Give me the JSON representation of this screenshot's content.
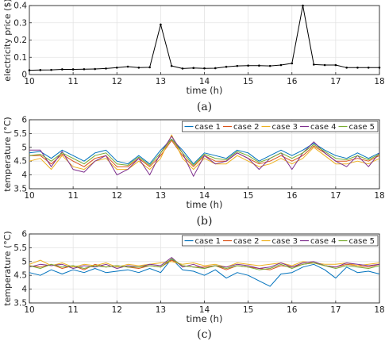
{
  "chart_data": [
    {
      "type": "line",
      "panel": "(a)",
      "xlabel": "time (h)",
      "ylabel": "electricity price ($)",
      "xlim": [
        10,
        18
      ],
      "ylim": [
        0,
        0.4
      ],
      "xticks": [
        10,
        11,
        12,
        13,
        14,
        15,
        16,
        17,
        18
      ],
      "yticks": [
        0,
        0.1,
        0.2,
        0.3,
        0.4
      ],
      "ytick_labels": [
        "0",
        "0.1",
        "0.2",
        "0.3",
        "0.4"
      ],
      "grid": true,
      "series": [
        {
          "color": "#000000",
          "markers": true,
          "x": [
            10,
            10.25,
            10.5,
            10.75,
            11,
            11.25,
            11.5,
            11.75,
            12,
            12.25,
            12.5,
            12.75,
            13,
            13.25,
            13.5,
            13.75,
            14,
            14.25,
            14.5,
            14.75,
            15,
            15.25,
            15.5,
            15.75,
            16,
            16.25,
            16.5,
            16.75,
            17,
            17.25,
            17.5,
            17.75,
            18
          ],
          "y": [
            0.025,
            0.026,
            0.027,
            0.03,
            0.03,
            0.031,
            0.032,
            0.035,
            0.04,
            0.046,
            0.04,
            0.042,
            0.29,
            0.05,
            0.035,
            0.038,
            0.036,
            0.037,
            0.045,
            0.05,
            0.052,
            0.052,
            0.05,
            0.055,
            0.065,
            0.4,
            0.058,
            0.055,
            0.055,
            0.04,
            0.04,
            0.04,
            0.04
          ]
        }
      ]
    },
    {
      "type": "line",
      "panel": "(b)",
      "xlabel": "time (h)",
      "ylabel": "temperature (°C)",
      "xlim": [
        10,
        18
      ],
      "ylim": [
        3.5,
        6
      ],
      "xticks": [
        10,
        11,
        12,
        13,
        14,
        15,
        16,
        17,
        18
      ],
      "yticks": [
        3.5,
        4,
        4.5,
        5,
        5.5,
        6
      ],
      "ytick_labels": [
        "3.5",
        "4",
        "4.5",
        "5",
        "5.5",
        "6"
      ],
      "grid": true,
      "legend": "top-right",
      "x": [
        10,
        10.25,
        10.5,
        10.75,
        11,
        11.25,
        11.5,
        11.75,
        12,
        12.25,
        12.5,
        12.75,
        13,
        13.25,
        13.5,
        13.75,
        14,
        14.25,
        14.5,
        14.75,
        15,
        15.25,
        15.5,
        15.75,
        16,
        16.25,
        16.5,
        16.75,
        17,
        17.25,
        17.5,
        17.75,
        18
      ],
      "series": [
        {
          "name": "case 1",
          "color": "#0072BD",
          "values": [
            4.8,
            4.85,
            4.6,
            4.9,
            4.7,
            4.5,
            4.8,
            4.9,
            4.5,
            4.4,
            4.7,
            4.4,
            4.9,
            5.3,
            4.9,
            4.4,
            4.8,
            4.7,
            4.6,
            4.9,
            4.8,
            4.5,
            4.7,
            4.9,
            4.7,
            4.9,
            5.15,
            4.9,
            4.7,
            4.6,
            4.8,
            4.6,
            4.8
          ]
        },
        {
          "name": "case 2",
          "color": "#D95319",
          "values": [
            4.7,
            4.7,
            4.4,
            4.75,
            4.5,
            4.3,
            4.6,
            4.7,
            4.3,
            4.3,
            4.6,
            4.3,
            4.7,
            5.25,
            4.7,
            4.3,
            4.7,
            4.5,
            4.5,
            4.8,
            4.6,
            4.4,
            4.5,
            4.7,
            4.5,
            4.7,
            5.05,
            4.8,
            4.5,
            4.5,
            4.6,
            4.5,
            4.7
          ]
        },
        {
          "name": "case 3",
          "color": "#EDB120",
          "values": [
            4.5,
            4.6,
            4.2,
            4.7,
            4.3,
            4.2,
            4.5,
            4.6,
            4.2,
            4.2,
            4.5,
            4.2,
            4.6,
            5.45,
            4.6,
            4.2,
            4.6,
            4.4,
            4.4,
            4.7,
            4.5,
            4.3,
            4.4,
            4.6,
            4.4,
            4.6,
            5.0,
            4.7,
            4.4,
            4.4,
            4.5,
            4.4,
            4.6
          ]
        },
        {
          "name": "case 4",
          "color": "#7E2F8E",
          "values": [
            4.9,
            4.9,
            4.3,
            4.85,
            4.2,
            4.1,
            4.5,
            4.7,
            4.0,
            4.2,
            4.6,
            4.0,
            4.8,
            5.4,
            4.8,
            3.95,
            4.7,
            4.4,
            4.5,
            4.8,
            4.6,
            4.2,
            4.6,
            4.8,
            4.2,
            4.8,
            5.2,
            4.8,
            4.5,
            4.3,
            4.7,
            4.3,
            4.8
          ]
        },
        {
          "name": "case 5",
          "color": "#77AC30",
          "values": [
            4.7,
            4.75,
            4.5,
            4.8,
            4.6,
            4.4,
            4.7,
            4.8,
            4.4,
            4.35,
            4.65,
            4.35,
            4.8,
            5.3,
            4.8,
            4.35,
            4.75,
            4.6,
            4.55,
            4.85,
            4.7,
            4.45,
            4.6,
            4.8,
            4.6,
            4.8,
            5.1,
            4.85,
            4.6,
            4.55,
            4.7,
            4.55,
            4.75
          ]
        }
      ]
    },
    {
      "type": "line",
      "panel": "(c)",
      "xlabel": "time (h)",
      "ylabel": "temperature (°C)",
      "xlim": [
        10,
        18
      ],
      "ylim": [
        3.5,
        6
      ],
      "xticks": [
        10,
        11,
        12,
        13,
        14,
        15,
        16,
        17,
        18
      ],
      "yticks": [
        3.5,
        4,
        4.5,
        5,
        5.5,
        6
      ],
      "ytick_labels": [
        "3.5",
        "4",
        "4.5",
        "5",
        "5.5",
        "6"
      ],
      "grid": true,
      "legend": "top-right",
      "x": [
        10,
        10.25,
        10.5,
        10.75,
        11,
        11.25,
        11.5,
        11.75,
        12,
        12.25,
        12.5,
        12.75,
        13,
        13.25,
        13.5,
        13.75,
        14,
        14.25,
        14.5,
        14.75,
        15,
        15.25,
        15.5,
        15.75,
        16,
        16.25,
        16.5,
        16.75,
        17,
        17.25,
        17.5,
        17.75,
        18
      ],
      "series": [
        {
          "name": "case 1",
          "color": "#0072BD",
          "values": [
            4.6,
            4.5,
            4.7,
            4.55,
            4.7,
            4.6,
            4.75,
            4.6,
            4.65,
            4.7,
            4.6,
            4.75,
            4.6,
            5.1,
            4.7,
            4.65,
            4.5,
            4.7,
            4.4,
            4.6,
            4.5,
            4.3,
            4.1,
            4.55,
            4.6,
            4.8,
            4.9,
            4.7,
            4.4,
            4.8,
            4.6,
            4.65,
            4.55
          ]
        },
        {
          "name": "case 2",
          "color": "#D95319",
          "values": [
            4.85,
            4.8,
            4.9,
            4.75,
            4.85,
            4.7,
            4.9,
            4.8,
            4.85,
            4.8,
            4.75,
            4.85,
            4.8,
            5.05,
            4.85,
            4.8,
            4.8,
            4.85,
            4.7,
            4.85,
            4.8,
            4.75,
            4.7,
            4.85,
            4.8,
            4.9,
            4.95,
            4.85,
            4.8,
            4.9,
            4.85,
            4.8,
            4.9
          ]
        },
        {
          "name": "case 3",
          "color": "#EDB120",
          "values": [
            4.9,
            5.05,
            4.85,
            4.95,
            4.8,
            4.9,
            4.85,
            4.95,
            4.8,
            4.9,
            4.85,
            4.9,
            4.95,
            5.0,
            4.9,
            4.95,
            4.85,
            4.9,
            4.8,
            4.95,
            4.9,
            4.85,
            4.9,
            4.95,
            4.85,
            5.0,
            4.95,
            4.9,
            4.9,
            4.95,
            4.85,
            4.9,
            4.95
          ]
        },
        {
          "name": "case 4",
          "color": "#7E2F8E",
          "values": [
            4.8,
            4.9,
            4.85,
            4.9,
            4.75,
            4.85,
            4.8,
            4.9,
            4.75,
            4.85,
            4.8,
            4.9,
            4.85,
            5.15,
            4.8,
            4.9,
            4.75,
            4.85,
            4.8,
            4.9,
            4.85,
            4.75,
            4.8,
            4.95,
            4.8,
            4.95,
            5.0,
            4.85,
            4.8,
            4.95,
            4.9,
            4.85,
            4.9
          ]
        },
        {
          "name": "case 5",
          "color": "#77AC30",
          "values": [
            4.85,
            4.75,
            4.9,
            4.8,
            4.85,
            4.75,
            4.85,
            4.8,
            4.85,
            4.8,
            4.8,
            4.85,
            4.8,
            5.1,
            4.85,
            4.8,
            4.75,
            4.85,
            4.75,
            4.85,
            4.8,
            4.7,
            4.75,
            4.9,
            4.75,
            4.9,
            4.95,
            4.85,
            4.75,
            4.85,
            4.8,
            4.75,
            4.85
          ]
        }
      ]
    }
  ]
}
